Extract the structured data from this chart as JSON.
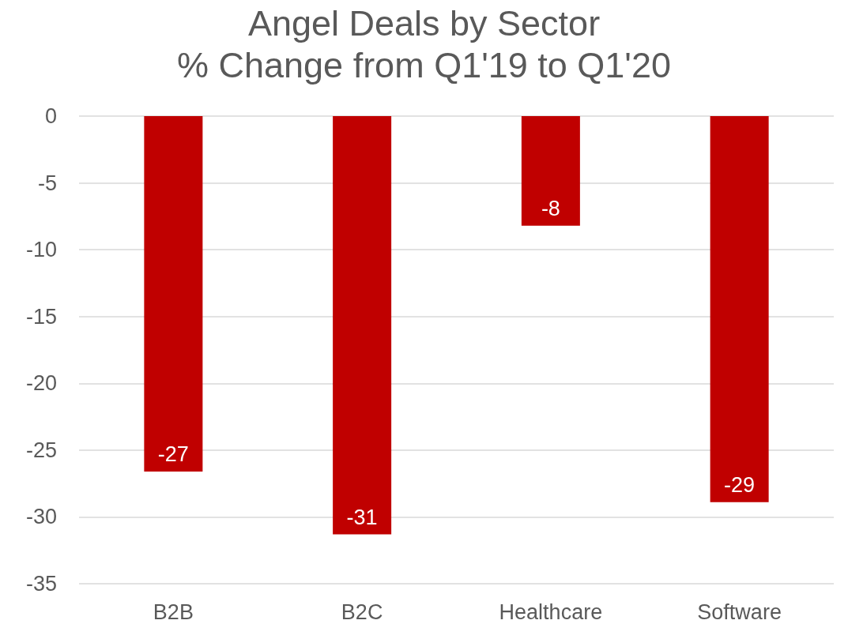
{
  "chart_data": {
    "type": "bar",
    "title": "Angel Deals by Sector",
    "subtitle": "% Change from Q1'19 to Q1'20",
    "categories": [
      "B2B",
      "B2C",
      "Healthcare",
      "Software"
    ],
    "values": [
      -26.6,
      -31.3,
      -8.2,
      -28.9
    ],
    "value_labels": [
      "-27",
      "-31",
      "-8",
      "-29"
    ],
    "color": "#c00000",
    "ylim": [
      -35,
      0
    ],
    "yticks": [
      -35,
      -30,
      -25,
      -20,
      -15,
      -10,
      -5,
      0
    ],
    "grid": "y"
  }
}
